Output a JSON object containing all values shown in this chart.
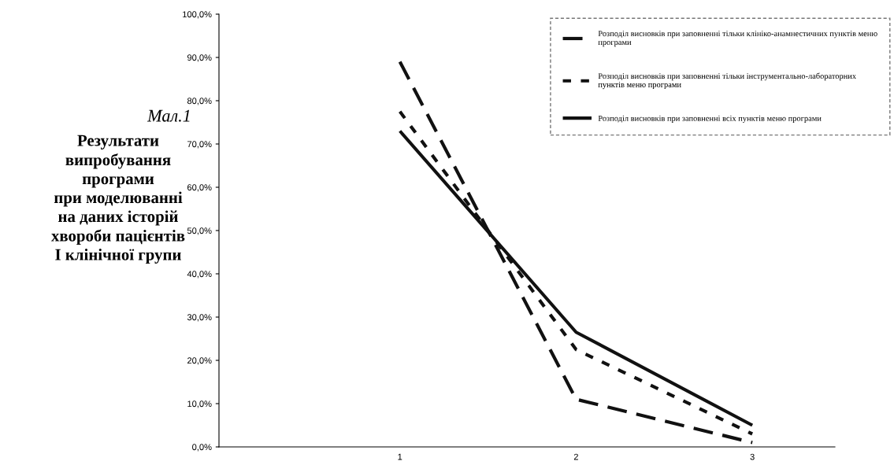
{
  "chart_data": {
    "type": "line",
    "title": "Результати\nвипробування\nпрограми\nпри моделюванні\nна даних історій\nхвороби пацієнтів\nІ клінічної групи",
    "annotations": [
      "Мал.1"
    ],
    "categories": [
      "1",
      "2",
      "3"
    ],
    "series": [
      {
        "name": "Розподіл висновків при заповненні тільки клініко-анамнестичних пунктів меню\nпрограми",
        "color": "#111111",
        "line_style": "dashed",
        "values": [
          89,
          11,
          1
        ]
      },
      {
        "name": "Розподіл висновків при заповненні тільки інструментально-лабораторних\nпунктів меню програми",
        "color": "#111111",
        "line_style": "dotted",
        "values": [
          77.5,
          22.5,
          3
        ]
      },
      {
        "name": "Розподіл висновків при заповненні всіх пунктів меню програми",
        "color": "#111111",
        "line_style": "solid",
        "values": [
          73,
          26.5,
          5
        ]
      }
    ],
    "ylim": [
      0,
      100
    ],
    "yticks": [
      {
        "value": 0,
        "label": "0,0%"
      },
      {
        "value": 10,
        "label": "10,0%"
      },
      {
        "value": 20,
        "label": "20,0%"
      },
      {
        "value": 30,
        "label": "30,0%"
      },
      {
        "value": 40,
        "label": "40,0%"
      },
      {
        "value": 50,
        "label": "50,0%"
      },
      {
        "value": 60,
        "label": "60,0%"
      },
      {
        "value": 70,
        "label": "70,0%"
      },
      {
        "value": 80,
        "label": "80,0%"
      },
      {
        "value": 90,
        "label": "90,0%"
      },
      {
        "value": 100,
        "label": "100,0%"
      }
    ],
    "grid": false,
    "legend": "top right",
    "marker": "none"
  }
}
